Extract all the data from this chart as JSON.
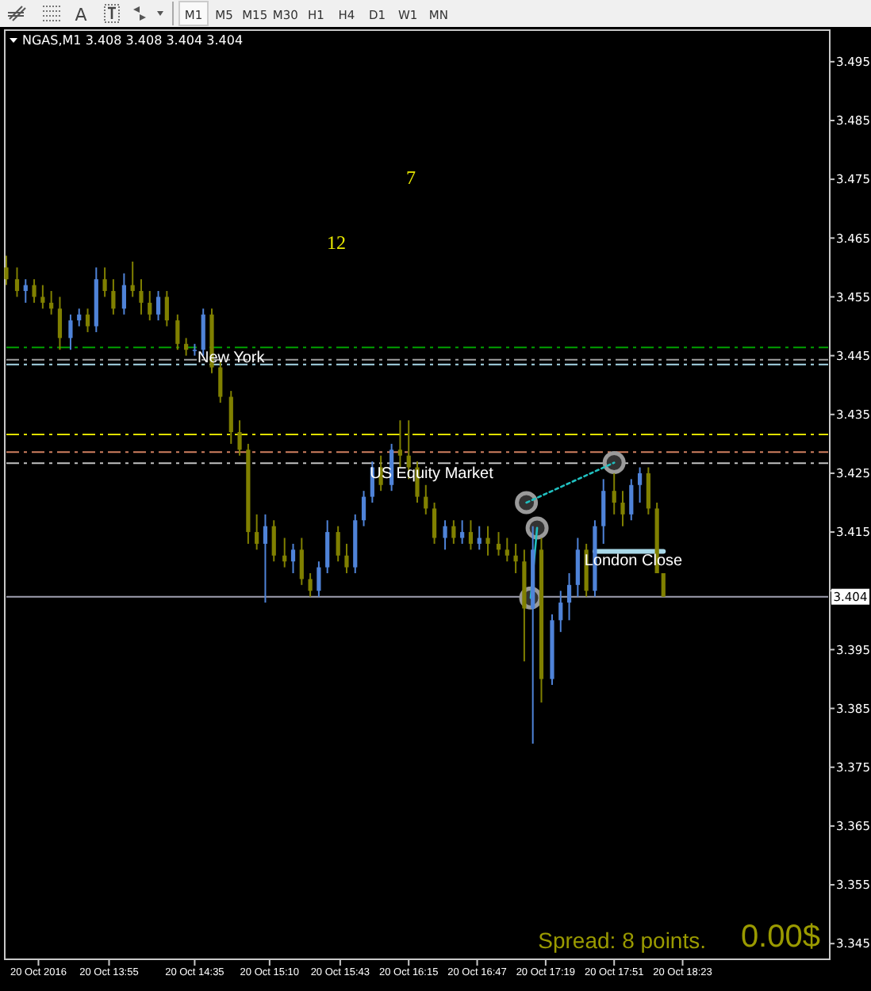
{
  "chart_data": [
    {
      "type": "other",
      "categories": [
        "M1",
        "M5",
        "M15",
        "M30",
        "H1",
        "H4",
        "D1",
        "W1",
        "MN"
      ],
      "annotations": [
        "A"
      ]
    },
    {
      "type": "candlestick",
      "title": "NGAS,M1  3.408 3.408 3.404 3.404",
      "xlim": [
        "2016-10-20T13:07",
        "2016-10-20T19:31"
      ],
      "ylim": [
        3.3426,
        3.5001
      ],
      "xticks": [
        {
          "value": "2016-10-20T13:22",
          "label": "20 Oct 2016"
        },
        {
          "value": "2016-10-20T13:55",
          "label": "20 Oct 13:55"
        },
        {
          "value": "2016-10-20T14:35",
          "label": "20 Oct 14:35"
        },
        {
          "value": "2016-10-20T15:10",
          "label": "20 Oct 15:10"
        },
        {
          "value": "2016-10-20T15:43",
          "label": "20 Oct 15:43"
        },
        {
          "value": "2016-10-20T16:15",
          "label": "20 Oct 16:15"
        },
        {
          "value": "2016-10-20T16:47",
          "label": "20 Oct 16:47"
        },
        {
          "value": "2016-10-20T17:19",
          "label": "20 Oct 17:19"
        },
        {
          "value": "2016-10-20T17:51",
          "label": "20 Oct 17:51"
        },
        {
          "value": "2016-10-20T18:23",
          "label": "20 Oct 18:23"
        }
      ],
      "yticks": [
        3.345,
        3.355,
        3.365,
        3.375,
        3.385,
        3.395,
        {
          "value": 3.405,
          "label": null
        },
        3.415,
        3.425,
        3.435,
        3.445,
        3.455,
        3.465,
        3.475,
        3.485,
        3.495
      ],
      "grid": false,
      "series": [
        {
          "type": "scatter",
          "color": "#9a9a9a",
          "marker": "circle",
          "x": [
            "2016-10-20T17:10",
            "2016-10-20T17:15",
            "2016-10-20T17:12",
            "2016-10-20T17:51"
          ],
          "values": [
            3.42,
            3.4157,
            3.4038,
            3.4268
          ]
        },
        {
          "type": "line",
          "color": "#20c0c0",
          "line_style": "dotted",
          "x": [
            "2016-10-20T17:10",
            "2016-10-20T17:51"
          ],
          "values": [
            3.42,
            3.4268
          ]
        },
        {
          "type": "line",
          "color": "#20c0c0",
          "line_style": "solid",
          "x": [
            "2016-10-20T17:15",
            "2016-10-20T17:12"
          ],
          "values": [
            3.4157,
            3.4038
          ]
        },
        {
          "type": "line",
          "color": "#a8d8e8",
          "line_style": "solid",
          "x": [
            "2016-10-20T17:42",
            "2016-10-20T18:14"
          ],
          "values": [
            3.4117,
            3.4117
          ]
        },
        {
          "type": "candlestick",
          "color": "#808000",
          "x": [
            "2016-10-20T13:07",
            "2016-10-20T13:12",
            "2016-10-20T13:20",
            "2016-10-20T13:24",
            "2016-10-20T13:28",
            "2016-10-20T13:32",
            "2016-10-20T13:45",
            "2016-10-20T13:53",
            "2016-10-20T13:57",
            "2016-10-20T14:06",
            "2016-10-20T14:10",
            "2016-10-20T14:14",
            "2016-10-20T14:22",
            "2016-10-20T14:27",
            "2016-10-20T14:31",
            "2016-10-20T14:43",
            "2016-10-20T14:47",
            "2016-10-20T14:52",
            "2016-10-20T14:56",
            "2016-10-20T15:00",
            "2016-10-20T15:04",
            "2016-10-20T15:12",
            "2016-10-20T15:17",
            "2016-10-20T15:25",
            "2016-10-20T15:29",
            "2016-10-20T15:42",
            "2016-10-20T15:46",
            "2016-10-20T16:02",
            "2016-10-20T16:11",
            "2016-10-20T16:15",
            "2016-10-20T16:19",
            "2016-10-20T16:23",
            "2016-10-20T16:27",
            "2016-10-20T16:36",
            "2016-10-20T16:44",
            "2016-10-20T16:52",
            "2016-10-20T16:57",
            "2016-10-20T17:01",
            "2016-10-20T17:05",
            "2016-10-20T17:09",
            "2016-10-20T17:17",
            "2016-10-20T17:38",
            "2016-10-20T17:51",
            "2016-10-20T17:55",
            "2016-10-20T18:07",
            "2016-10-20T18:11",
            "2016-10-20T18:14"
          ],
          "ohlc": [
            [
              3.46,
              3.462,
              3.457,
              3.458
            ],
            [
              3.458,
              3.46,
              3.455,
              3.456
            ],
            [
              3.457,
              3.458,
              3.454,
              3.455
            ],
            [
              3.455,
              3.457,
              3.453,
              3.454
            ],
            [
              3.454,
              3.456,
              3.452,
              3.453
            ],
            [
              3.453,
              3.455,
              3.446,
              3.448
            ],
            [
              3.452,
              3.453,
              3.449,
              3.45
            ],
            [
              3.458,
              3.46,
              3.455,
              3.456
            ],
            [
              3.456,
              3.458,
              3.452,
              3.453
            ],
            [
              3.457,
              3.461,
              3.455,
              3.456
            ],
            [
              3.456,
              3.458,
              3.452,
              3.454
            ],
            [
              3.454,
              3.456,
              3.451,
              3.452
            ],
            [
              3.455,
              3.456,
              3.45,
              3.451
            ],
            [
              3.451,
              3.452,
              3.446,
              3.447
            ],
            [
              3.447,
              3.448,
              3.445,
              3.446
            ],
            [
              3.452,
              3.453,
              3.442,
              3.443
            ],
            [
              3.443,
              3.444,
              3.437,
              3.438
            ],
            [
              3.438,
              3.439,
              3.43,
              3.432
            ],
            [
              3.432,
              3.434,
              3.428,
              3.429
            ],
            [
              3.429,
              3.43,
              3.413,
              3.415
            ],
            [
              3.415,
              3.418,
              3.412,
              3.413
            ],
            [
              3.416,
              3.417,
              3.41,
              3.411
            ],
            [
              3.411,
              3.414,
              3.409,
              3.41
            ],
            [
              3.412,
              3.414,
              3.406,
              3.407
            ],
            [
              3.407,
              3.408,
              3.404,
              3.405
            ],
            [
              3.415,
              3.416,
              3.41,
              3.411
            ],
            [
              3.411,
              3.413,
              3.408,
              3.409
            ],
            [
              3.426,
              3.428,
              3.422,
              3.423
            ],
            [
              3.429,
              3.434,
              3.426,
              3.428
            ],
            [
              3.428,
              3.434,
              3.424,
              3.426
            ],
            [
              3.426,
              3.427,
              3.42,
              3.421
            ],
            [
              3.421,
              3.423,
              3.418,
              3.419
            ],
            [
              3.419,
              3.42,
              3.413,
              3.414
            ],
            [
              3.416,
              3.417,
              3.413,
              3.414
            ],
            [
              3.415,
              3.417,
              3.412,
              3.413
            ],
            [
              3.414,
              3.416,
              3.411,
              3.413
            ],
            [
              3.413,
              3.415,
              3.411,
              3.412
            ],
            [
              3.412,
              3.414,
              3.41,
              3.411
            ],
            [
              3.411,
              3.413,
              3.408,
              3.41
            ],
            [
              3.41,
              3.412,
              3.393,
              3.402
            ],
            [
              3.412,
              3.414,
              3.386,
              3.39
            ],
            [
              3.412,
              3.413,
              3.404,
              3.405
            ],
            [
              3.422,
              3.425,
              3.418,
              3.42
            ],
            [
              3.42,
              3.422,
              3.416,
              3.418
            ],
            [
              3.425,
              3.426,
              3.418,
              3.419
            ],
            [
              3.419,
              3.42,
              3.408,
              3.408
            ],
            [
              3.408,
              3.408,
              3.404,
              3.404
            ]
          ]
        },
        {
          "type": "candlestick",
          "color": "#4f83d8",
          "x": [
            "2016-10-20T13:16",
            "2016-10-20T13:37",
            "2016-10-20T13:41",
            "2016-10-20T13:49",
            "2016-10-20T14:02",
            "2016-10-20T14:18",
            "2016-10-20T14:35",
            "2016-10-20T14:39",
            "2016-10-20T15:08",
            "2016-10-20T15:21",
            "2016-10-20T15:33",
            "2016-10-20T15:37",
            "2016-10-20T15:50",
            "2016-10-20T15:54",
            "2016-10-20T15:58",
            "2016-10-20T16:07",
            "2016-10-20T16:32",
            "2016-10-20T16:40",
            "2016-10-20T16:48",
            "2016-10-20T17:13",
            "2016-10-20T17:22",
            "2016-10-20T17:26",
            "2016-10-20T17:30",
            "2016-10-20T17:34",
            "2016-10-20T17:42",
            "2016-10-20T17:46",
            "2016-10-20T17:59",
            "2016-10-20T18:03"
          ],
          "ohlc": [
            [
              3.456,
              3.458,
              3.454,
              3.457
            ],
            [
              3.448,
              3.452,
              3.446,
              3.451
            ],
            [
              3.451,
              3.453,
              3.45,
              3.452
            ],
            [
              3.45,
              3.46,
              3.449,
              3.458
            ],
            [
              3.453,
              3.459,
              3.452,
              3.457
            ],
            [
              3.452,
              3.456,
              3.451,
              3.455
            ],
            [
              3.446,
              3.447,
              3.445,
              3.446
            ],
            [
              3.446,
              3.453,
              3.445,
              3.452
            ],
            [
              3.413,
              3.418,
              3.403,
              3.416
            ],
            [
              3.41,
              3.413,
              3.408,
              3.412
            ],
            [
              3.405,
              3.41,
              3.404,
              3.409
            ],
            [
              3.409,
              3.417,
              3.408,
              3.415
            ],
            [
              3.409,
              3.418,
              3.408,
              3.417
            ],
            [
              3.417,
              3.422,
              3.416,
              3.421
            ],
            [
              3.421,
              3.427,
              3.42,
              3.426
            ],
            [
              3.423,
              3.43,
              3.422,
              3.429
            ],
            [
              3.414,
              3.417,
              3.412,
              3.416
            ],
            [
              3.414,
              3.417,
              3.413,
              3.415
            ],
            [
              3.413,
              3.416,
              3.412,
              3.414
            ],
            [
              3.402,
              3.416,
              3.379,
              3.412
            ],
            [
              3.39,
              3.401,
              3.389,
              3.4
            ],
            [
              3.4,
              3.405,
              3.398,
              3.403
            ],
            [
              3.403,
              3.408,
              3.4,
              3.406
            ],
            [
              3.406,
              3.414,
              3.404,
              3.412
            ],
            [
              3.405,
              3.417,
              3.404,
              3.416
            ],
            [
              3.416,
              3.424,
              3.413,
              3.422
            ],
            [
              3.418,
              3.424,
              3.417,
              3.423
            ],
            [
              3.423,
              3.426,
              3.42,
              3.425
            ]
          ]
        }
      ],
      "ref_lines": [
        {
          "axis": "y",
          "value": 3.4464,
          "color": "#00a000",
          "line_style": "dashed"
        },
        {
          "axis": "y",
          "value": 3.4443,
          "color": "#a0a0a0",
          "line_style": "dashed"
        },
        {
          "axis": "y",
          "value": 3.4435,
          "color": "#a8d8e8",
          "line_style": "dashed"
        },
        {
          "axis": "y",
          "value": 3.4316,
          "color": "#e0e000",
          "line_style": "dashed"
        },
        {
          "axis": "y",
          "value": 3.4286,
          "color": "#d08060",
          "line_style": "dashed"
        },
        {
          "axis": "y",
          "value": 3.4267,
          "color": "#c0c0c0",
          "line_style": "dashed"
        },
        {
          "axis": "y",
          "value": 3.404,
          "label": "3.404",
          "color": "#a0a0b0",
          "line_style": "solid"
        }
      ],
      "annotations": [
        {
          "text": "New York",
          "x": "2016-10-20T14:52",
          "y": 3.4448
        },
        {
          "text": "London Close",
          "x": "2016-10-20T18:00",
          "y": 3.4103
        },
        "US Equity Market",
        "12",
        "7",
        "Spread: 8 points.",
        "0.00$"
      ]
    }
  ]
}
